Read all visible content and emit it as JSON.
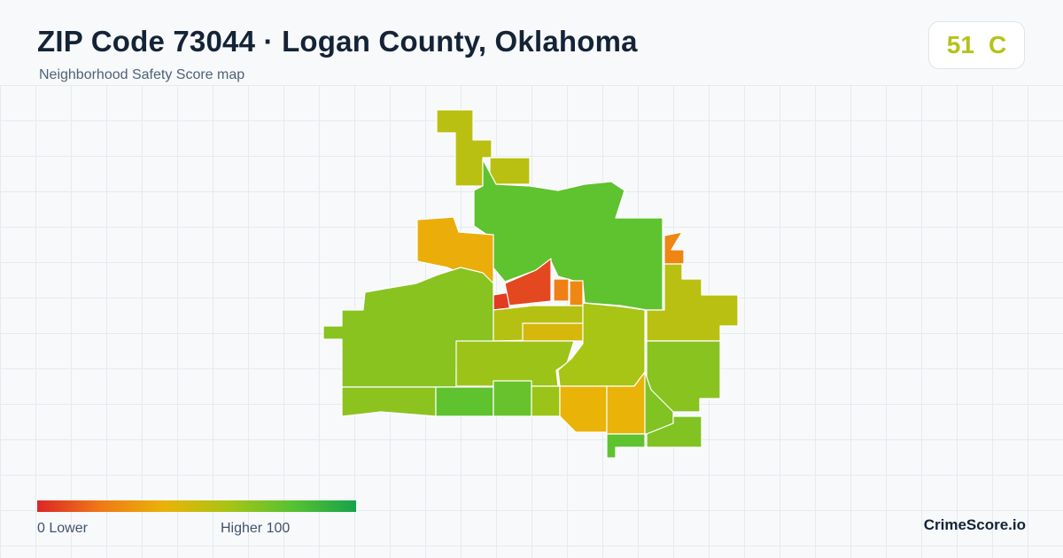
{
  "header": {
    "title": "ZIP Code 73044 · Logan County, Oklahoma",
    "subtitle": "Neighborhood Safety Score map"
  },
  "score": {
    "value": "51",
    "grade": "C",
    "color": "#b5c21a"
  },
  "legend": {
    "min_label": "0  Lower",
    "max_label": "Higher  100",
    "min_value": 0,
    "max_value": 100,
    "colors": [
      "#dc2626",
      "#f07a16",
      "#eab308",
      "#a8c414",
      "#57c232",
      "#16a34a"
    ]
  },
  "brand": "CrimeScore.io",
  "map": {
    "regions": [
      {
        "name": "north-strip",
        "score": 55
      },
      {
        "name": "north-center-small",
        "score": 55
      },
      {
        "name": "northeast-large",
        "score": 78
      },
      {
        "name": "northwest-orange",
        "score": 38
      },
      {
        "name": "center-red-west",
        "score": 5
      },
      {
        "name": "center-red",
        "score": 8
      },
      {
        "name": "center-orange-small",
        "score": 22
      },
      {
        "name": "east-orange-small",
        "score": 25
      },
      {
        "name": "east-orange-tiny",
        "score": 24
      },
      {
        "name": "east-yellowgreen",
        "score": 55
      },
      {
        "name": "west-large",
        "score": 68
      },
      {
        "name": "center-yellowgreen",
        "score": 56
      },
      {
        "name": "center-gold-strip",
        "score": 46
      },
      {
        "name": "center-green",
        "score": 63
      },
      {
        "name": "center-east-green",
        "score": 60
      },
      {
        "name": "east-green",
        "score": 68
      },
      {
        "name": "southwest-strip",
        "score": 67
      },
      {
        "name": "south-green-1",
        "score": 78
      },
      {
        "name": "south-green-2",
        "score": 76
      },
      {
        "name": "south-lime",
        "score": 63
      },
      {
        "name": "south-orange-1",
        "score": 40
      },
      {
        "name": "south-orange-2",
        "score": 40
      },
      {
        "name": "south-mid-green",
        "score": 70
      },
      {
        "name": "south-bottom-green",
        "score": 78
      },
      {
        "name": "southeast-green",
        "score": 70
      }
    ]
  }
}
